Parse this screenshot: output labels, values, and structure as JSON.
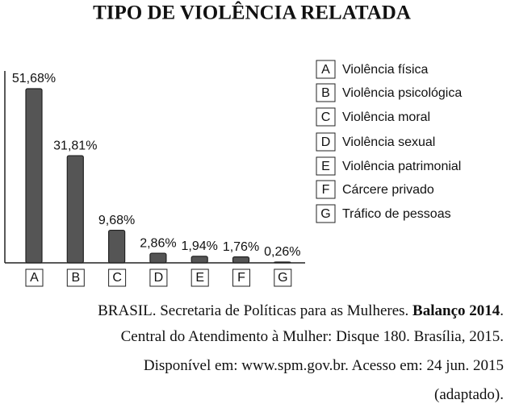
{
  "chart_data": {
    "type": "bar",
    "title": "TIPO DE VIOLÊNCIA RELATADA",
    "categories": [
      "A",
      "B",
      "C",
      "D",
      "E",
      "F",
      "G"
    ],
    "values": [
      51.68,
      31.81,
      9.68,
      2.86,
      1.94,
      1.76,
      0.26
    ],
    "value_labels": [
      "51,68%",
      "31,81%",
      "9,68%",
      "2,86%",
      "1,94%",
      "1,76%",
      "0,26%"
    ],
    "color": "#555555",
    "legend": [
      {
        "key": "A",
        "label": "Violência física"
      },
      {
        "key": "B",
        "label": "Violência psicológica"
      },
      {
        "key": "C",
        "label": "Violência moral"
      },
      {
        "key": "D",
        "label": "Violência sexual"
      },
      {
        "key": "E",
        "label": "Violência patrimonial"
      },
      {
        "key": "F",
        "label": "Cárcere privado"
      },
      {
        "key": "G",
        "label": "Tráfico de pessoas"
      }
    ],
    "source": {
      "line1": "BRASIL. Secretaria de Políticas para as Mulheres.",
      "line1_bold": "Balanço 2014",
      "line1_end": ".",
      "line2": "Central do Atendimento à Mulher: Disque 180. Brasília, 2015.",
      "line3": "Disponível em: www.spm.gov.br. Acesso em: 24 jun. 2015",
      "line4": "(adaptado)."
    }
  }
}
